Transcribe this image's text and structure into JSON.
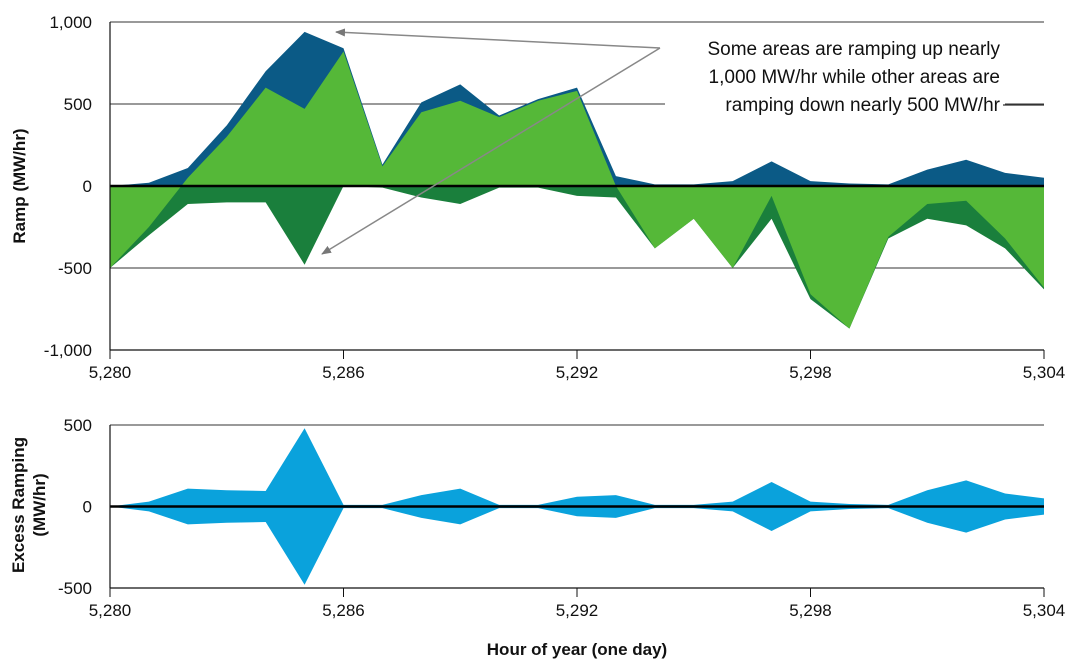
{
  "chart_data": [
    {
      "type": "area",
      "ylabel": "Ramp (MW/hr)",
      "xlabel": "",
      "ylim": [
        -1000,
        1000
      ],
      "xlim": [
        5280,
        5304
      ],
      "yticks": [
        "1,000",
        "500",
        "0",
        "-500",
        "-1,000"
      ],
      "ytick_values": [
        1000,
        500,
        0,
        -500,
        -1000
      ],
      "xticks": [
        "5,280",
        "5,286",
        "5,292",
        "5,298",
        "5,304"
      ],
      "xtick_values": [
        5280,
        5286,
        5292,
        5298,
        5304
      ],
      "grid": "horizontal",
      "colors": {
        "upper_envelope": "#0b5a86",
        "lower_envelope": "#1a7f3c",
        "net": "#55b838",
        "zero_line": "#000000"
      },
      "x": [
        5280,
        5281,
        5282,
        5283,
        5284,
        5285,
        5286,
        5287,
        5288,
        5289,
        5290,
        5291,
        5292,
        5293,
        5294,
        5295,
        5296,
        5297,
        5298,
        5299,
        5300,
        5301,
        5302,
        5303,
        5304
      ],
      "series": [
        {
          "values_upper": [
            -500,
            -250,
            50,
            300,
            600,
            470,
            820,
            120,
            450,
            520,
            420,
            520,
            580,
            0,
            -380,
            -200,
            -500,
            -60,
            -660,
            -870,
            -310,
            -110,
            -90,
            -320,
            -620
          ],
          "values_max": [
            0,
            20,
            110,
            370,
            700,
            940,
            840,
            130,
            510,
            620,
            430,
            530,
            600,
            60,
            10,
            10,
            30,
            150,
            30,
            15,
            10,
            100,
            160,
            80,
            50
          ]
        },
        {
          "values_lower": [
            -500,
            -300,
            -110,
            -100,
            -100,
            -480,
            0,
            -10,
            -70,
            -110,
            -10,
            -10,
            -60,
            -70,
            -380,
            -200,
            -500,
            -200,
            -690,
            -870,
            -320,
            -200,
            -240,
            -380,
            -630
          ]
        }
      ],
      "annotation": [
        "Some areas are ramping up nearly",
        "1,000 MW/hr while other areas are",
        "ramping down nearly 500 MW/hr"
      ]
    },
    {
      "type": "area",
      "ylabel": "Excess Ramping (MW/hr)",
      "ylabel_lines": [
        "Excess Ramping",
        "(MW/hr)"
      ],
      "xlabel": "Hour of year (one day)",
      "ylim": [
        -500,
        500
      ],
      "xlim": [
        5280,
        5304
      ],
      "yticks": [
        "500",
        "0",
        "-500"
      ],
      "ytick_values": [
        500,
        0,
        -500
      ],
      "xticks": [
        "5,280",
        "5,286",
        "5,292",
        "5,298",
        "5,304"
      ],
      "xtick_values": [
        5280,
        5286,
        5292,
        5298,
        5304
      ],
      "grid": "horizontal",
      "colors": {
        "fill": "#0aa2dc",
        "zero_line": "#000000"
      },
      "x": [
        5280,
        5281,
        5282,
        5283,
        5284,
        5285,
        5286,
        5287,
        5288,
        5289,
        5290,
        5291,
        5292,
        5293,
        5294,
        5295,
        5296,
        5297,
        5298,
        5299,
        5300,
        5301,
        5302,
        5303,
        5304
      ],
      "series": [
        {
          "name": "",
          "values": [
            0,
            30,
            110,
            100,
            95,
            480,
            10,
            10,
            70,
            110,
            10,
            10,
            60,
            70,
            10,
            10,
            30,
            150,
            30,
            15,
            10,
            100,
            160,
            80,
            50
          ]
        }
      ]
    }
  ]
}
